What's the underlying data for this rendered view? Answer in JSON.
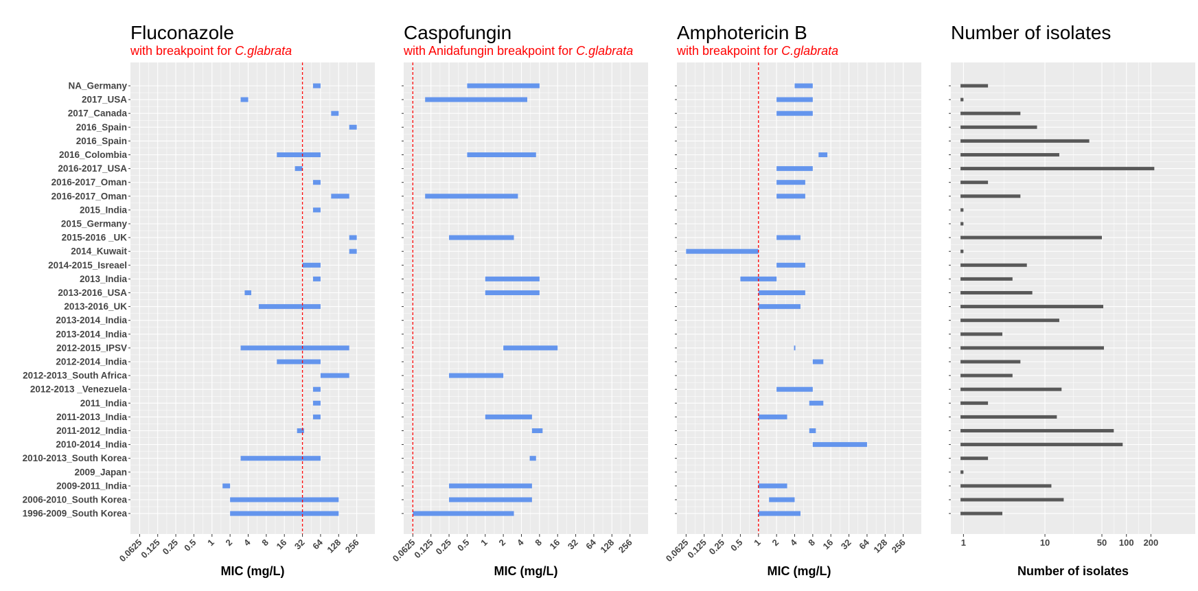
{
  "chart_data": {
    "type": "bar",
    "categories": [
      "NA_Germany",
      "2017_USA",
      "2017_Canada",
      "2016_Spain",
      "2016_Spain",
      "2016_Colombia",
      "2016-2017_USA",
      "2016-2017_Oman",
      "2016-2017_Oman",
      "2015_India",
      "2015_Germany",
      "2015-2016 _UK",
      "2014_Kuwait",
      "2014-2015_Isreael",
      "2013_India",
      "2013-2016_USA",
      "2013-2016_UK",
      "2013-2014_India ",
      "2013-2014_India",
      "2012-2015_IPSV",
      "2012-2014_India",
      "2012-2013_South Africa",
      "2012-2013 _Venezuela",
      "2011_India ",
      "2011-2013_India",
      "2011-2012_India",
      "2010-2014_India",
      "2010-2013_South Korea",
      "2009_Japan",
      "2009-2011_India",
      "2006-2010_South Korea",
      "1996-2009_South Korea"
    ],
    "panels": [
      {
        "key": "fluconazole",
        "title": "Fluconazole",
        "subtitle_prefix": "with breakpoint for ",
        "subtitle_species": "C.glabrata",
        "xlabel": "MIC (mg/L)",
        "scale": "log2",
        "ticks": [
          "0.0625",
          "0.125",
          "0.25",
          "0.5",
          "1",
          "2",
          "4",
          "8",
          "16",
          "32",
          "64",
          "128",
          "256"
        ],
        "tick_values": [
          0.0625,
          0.125,
          0.25,
          0.5,
          1,
          2,
          4,
          8,
          16,
          32,
          64,
          128,
          256
        ],
        "xlim": [
          0.044,
          512
        ],
        "breakpoint": 32,
        "ranges": [
          [
            48,
            64
          ],
          [
            3,
            4
          ],
          [
            96,
            128
          ],
          [
            192,
            256
          ],
          null,
          [
            12,
            64
          ],
          [
            24,
            32
          ],
          [
            48,
            64
          ],
          [
            96,
            192
          ],
          [
            48,
            64
          ],
          null,
          [
            192,
            256
          ],
          [
            192,
            256
          ],
          [
            32,
            64
          ],
          [
            48,
            64
          ],
          [
            3.5,
            4.5
          ],
          [
            6,
            64
          ],
          null,
          null,
          [
            3,
            192
          ],
          [
            12,
            64
          ],
          [
            64,
            192
          ],
          [
            48,
            64
          ],
          [
            48,
            64
          ],
          [
            48,
            64
          ],
          [
            26,
            34
          ],
          null,
          [
            3,
            64
          ],
          null,
          [
            1.5,
            2
          ],
          [
            2,
            128
          ],
          [
            2,
            128
          ]
        ]
      },
      {
        "key": "caspofungin",
        "title": "Caspofungin",
        "subtitle_prefix": "with Anidafungin breakpoint for ",
        "subtitle_species": "C.glabrata",
        "xlabel": "MIC (mg/L)",
        "scale": "log2",
        "ticks": [
          "0.0625",
          "0.125",
          "0.25",
          "0.5",
          "1",
          "2",
          "4",
          "8",
          "16",
          "32",
          "64",
          "128",
          "256"
        ],
        "tick_values": [
          0.0625,
          0.125,
          0.25,
          0.5,
          1,
          2,
          4,
          8,
          16,
          32,
          64,
          128,
          256
        ],
        "xlim": [
          0.044,
          512
        ],
        "breakpoint": 0.0625,
        "ranges": [
          [
            0.5,
            8
          ],
          [
            0.1,
            5
          ],
          null,
          null,
          null,
          [
            0.5,
            7
          ],
          null,
          null,
          [
            0.1,
            3.5
          ],
          null,
          null,
          [
            0.25,
            3
          ],
          null,
          null,
          [
            1,
            8
          ],
          [
            1,
            8
          ],
          null,
          null,
          null,
          [
            2,
            16
          ],
          null,
          [
            0.25,
            2
          ],
          null,
          null,
          [
            1,
            6
          ],
          [
            6,
            9
          ],
          null,
          [
            5.5,
            7
          ],
          null,
          [
            0.25,
            6
          ],
          [
            0.25,
            6
          ],
          [
            0.0625,
            3
          ]
        ]
      },
      {
        "key": "amphotericin",
        "title": "Amphotericin B",
        "subtitle_prefix": "with breakpoint for ",
        "subtitle_species": "C.glabrata",
        "xlabel": "MIC (mg/L)",
        "scale": "log2",
        "ticks": [
          "0.0625",
          "0.125",
          "0.25",
          "0.5",
          "1",
          "2",
          "4",
          "8",
          "16",
          "32",
          "64",
          "128",
          "256"
        ],
        "tick_values": [
          0.0625,
          0.125,
          0.25,
          0.5,
          1,
          2,
          4,
          8,
          16,
          32,
          64,
          128,
          256
        ],
        "xlim": [
          0.044,
          512
        ],
        "breakpoint": 1,
        "ranges": [
          [
            4,
            8
          ],
          [
            2,
            8
          ],
          [
            2,
            8
          ],
          null,
          null,
          [
            10,
            14
          ],
          [
            2,
            8
          ],
          [
            2,
            6
          ],
          [
            2,
            6
          ],
          null,
          null,
          [
            2,
            5
          ],
          [
            0.0625,
            1
          ],
          [
            2,
            6
          ],
          [
            0.5,
            2
          ],
          [
            1,
            6
          ],
          [
            1,
            5
          ],
          null,
          null,
          [
            3.9,
            4.1
          ],
          [
            8,
            12
          ],
          null,
          [
            2,
            8
          ],
          [
            7,
            12
          ],
          [
            1,
            3
          ],
          [
            7,
            9
          ],
          [
            8,
            64
          ],
          null,
          null,
          [
            1,
            3
          ],
          [
            1.5,
            4
          ],
          [
            1,
            5
          ]
        ]
      },
      {
        "key": "isolates",
        "title": "Number of isolates",
        "xlabel": "Number of isolates",
        "scale": "log10",
        "ticks": [
          "1",
          "10",
          "50",
          "100",
          "200"
        ],
        "tick_values": [
          1,
          10,
          50,
          100,
          200
        ],
        "xlim": [
          0.7,
          700
        ],
        "baseline": 0.92,
        "values": [
          2,
          1,
          5,
          8,
          35,
          15,
          220,
          2,
          5,
          1,
          1,
          50,
          1,
          6,
          4,
          7,
          52,
          15,
          3,
          53,
          5,
          4,
          16,
          2,
          14,
          70,
          90,
          2,
          1,
          12,
          17,
          3
        ]
      }
    ]
  },
  "colors": {
    "bar_mic": "#6495ED",
    "bar_count": "#595959",
    "breakpoint": "#ff0000",
    "panel_bg": "#ebebeb",
    "grid": "#ffffff"
  }
}
